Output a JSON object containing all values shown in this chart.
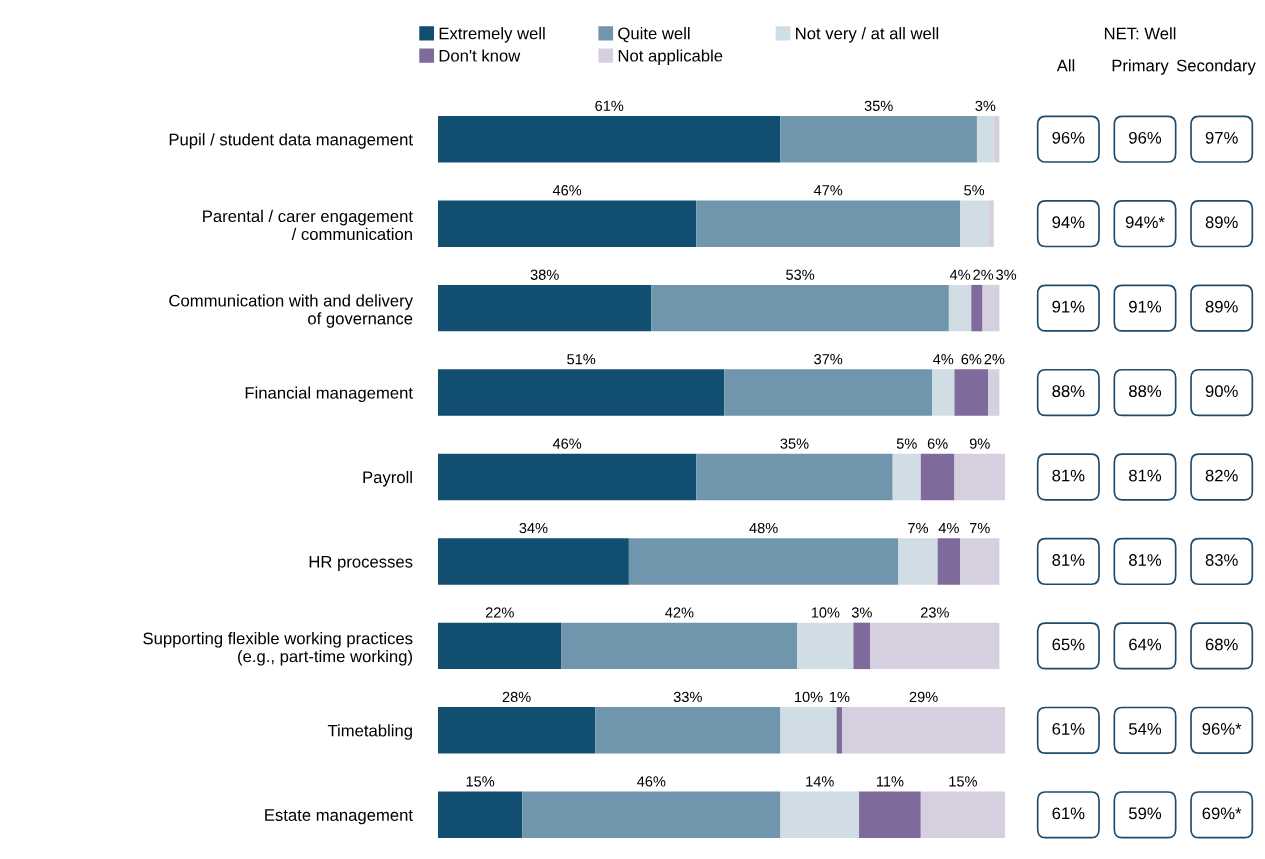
{
  "chart_data": [
    {
      "type": "bar",
      "orientation": "horizontal",
      "stacked": true,
      "legend": "top",
      "grid": false,
      "categories": [
        "Pupil / student data management",
        "Parental / carer engagement\n/ communication",
        "Communication with and delivery\nof governance",
        "Financial management",
        "Payroll",
        "HR processes",
        "Supporting flexible working practices\n(e.g., part-time working)",
        "Timetabling",
        "Estate management"
      ],
      "series": [
        {
          "name": "Extremely well",
          "color": "#124e6f",
          "values": [
            61,
            46,
            38,
            51,
            46,
            34,
            22,
            28,
            15
          ],
          "value_labels": [
            "61%",
            "46%",
            "38%",
            "51%",
            "46%",
            "34%",
            "22%",
            "28%",
            "15%"
          ]
        },
        {
          "name": "Quite well",
          "color": "#7096ae",
          "values": [
            35,
            47,
            53,
            37,
            35,
            48,
            42,
            33,
            46
          ],
          "value_labels": [
            "35%",
            "47%",
            "53%",
            "37%",
            "35%",
            "48%",
            "42%",
            "33%",
            "46%"
          ]
        },
        {
          "name": "Not very / at all well",
          "color": "#d0dde5",
          "values": [
            3,
            5,
            4,
            4,
            5,
            7,
            10,
            10,
            14
          ],
          "value_labels": [
            "3%",
            "5%",
            "4%",
            "4%",
            "5%",
            "7%",
            "10%",
            "10%",
            "14%"
          ]
        },
        {
          "name": "Don't know",
          "color": "#7e6b9b",
          "values": [
            0,
            0,
            2,
            6,
            6,
            4,
            3,
            1,
            11
          ],
          "value_labels": [
            null,
            null,
            "2%",
            "6%",
            "6%",
            "4%",
            "3%",
            "1%",
            "11%"
          ]
        },
        {
          "name": "Not applicable",
          "color": "#d5cfe0",
          "values": [
            1,
            1,
            3,
            2,
            9,
            7,
            23,
            29,
            15
          ],
          "value_labels": [
            null,
            null,
            "3%",
            "2%",
            "9%",
            "7%",
            "23%",
            "29%",
            "15%"
          ]
        }
      ]
    },
    {
      "type": "other",
      "title": "NET: Well",
      "categories": [
        "All",
        "Primary",
        "Secondary"
      ],
      "cell_labels": [
        [
          "96%",
          "96%",
          "97%"
        ],
        [
          "94%",
          "94%*",
          "89%"
        ],
        [
          "91%",
          "91%",
          "89%"
        ],
        [
          "88%",
          "88%",
          "90%"
        ],
        [
          "81%",
          "81%",
          "82%"
        ],
        [
          "81%",
          "81%",
          "83%"
        ],
        [
          "65%",
          "64%",
          "68%"
        ],
        [
          "61%",
          "54%",
          "96%*"
        ],
        [
          "61%",
          "59%",
          "69%*"
        ]
      ]
    }
  ]
}
